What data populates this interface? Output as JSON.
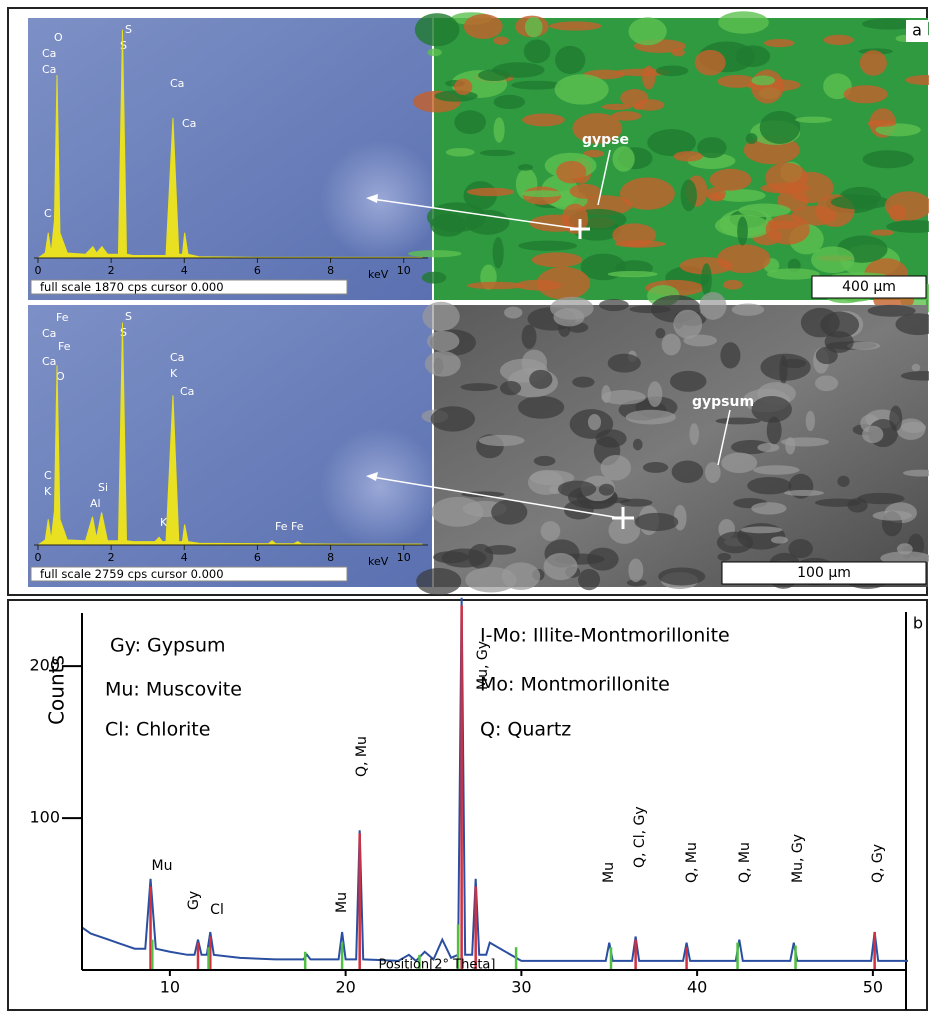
{
  "chart_data": [
    {
      "type": "line",
      "color": "#e8e020",
      "caption": "full scale 1870 cps cursor 0.000",
      "xlabel": "keV",
      "xlim": [
        0,
        10.5
      ],
      "xticks": [
        0,
        2,
        4,
        6,
        8,
        10
      ],
      "ylim": [
        0,
        1870
      ],
      "x": [
        0,
        0.2,
        0.28,
        0.36,
        0.45,
        0.52,
        0.6,
        0.8,
        1.3,
        1.5,
        1.6,
        1.75,
        1.9,
        2.2,
        2.31,
        2.42,
        2.6,
        3.5,
        3.69,
        3.85,
        3.95,
        4.01,
        4.1,
        4.4,
        6,
        8,
        10.5
      ],
      "values": [
        0,
        40,
        200,
        40,
        300,
        1450,
        200,
        40,
        30,
        90,
        40,
        90,
        30,
        30,
        1810,
        30,
        20,
        20,
        1110,
        30,
        30,
        200,
        30,
        10,
        5,
        5,
        5
      ],
      "annotations": [
        "O",
        "Ca",
        "Ca",
        "C",
        "S",
        "S",
        "Ca",
        "Ca"
      ]
    },
    {
      "type": "line",
      "color": "#e8e020",
      "caption": "full scale 2759 cps cursor 0.000",
      "xlabel": "keV",
      "xlim": [
        0,
        10.5
      ],
      "xticks": [
        0,
        2,
        4,
        6,
        8,
        10
      ],
      "ylim": [
        0,
        2759
      ],
      "x": [
        0,
        0.2,
        0.28,
        0.36,
        0.45,
        0.52,
        0.6,
        0.8,
        1.3,
        1.49,
        1.6,
        1.74,
        1.9,
        2.2,
        2.31,
        2.42,
        2.6,
        3.2,
        3.31,
        3.4,
        3.5,
        3.69,
        3.85,
        3.95,
        4.01,
        4.1,
        4.4,
        6.3,
        6.4,
        6.5,
        7.0,
        7.1,
        7.2,
        8,
        10.5
      ],
      "values": [
        0,
        60,
        300,
        60,
        400,
        2100,
        300,
        60,
        50,
        330,
        80,
        380,
        50,
        50,
        2600,
        50,
        40,
        40,
        90,
        40,
        40,
        1750,
        40,
        40,
        240,
        40,
        20,
        15,
        50,
        15,
        15,
        40,
        15,
        10,
        10
      ],
      "annotations": [
        "Fe",
        "Ca",
        "Fe",
        "Ca",
        "O",
        "S",
        "S",
        "Ca",
        "K",
        "Ca",
        "C",
        "K",
        "Si",
        "Al",
        "K",
        "Fe Fe"
      ]
    },
    {
      "type": "line",
      "ylabel": "Counts",
      "xlabel": "Position[2° Theta]",
      "xlim": [
        5,
        52
      ],
      "xticks": [
        10,
        20,
        30,
        40,
        50
      ],
      "ylim": [
        0,
        235
      ],
      "yticks": [
        100,
        200
      ],
      "legend": [
        "Gy: Gypsum",
        "Mu: Muscovite",
        "Cl: Chlorite",
        "I-Mo: Illite-Montmorillonite",
        "Mo: Montmorillonite",
        "Q: Quartz"
      ],
      "annotations": [
        "Mu",
        "Gy",
        "Cl",
        "Mu",
        "Q, Mu",
        "Mu, Gy",
        "Mu",
        "Q, Cl, Gy",
        "Q, Mu",
        "Q, Mu",
        "Mu, Gy",
        "Q, Gy"
      ],
      "series": [
        {
          "color": "#2a4fa0",
          "x": [
            5,
            5.5,
            6,
            6.5,
            7,
            7.5,
            8,
            8.6,
            8.9,
            9.2,
            10,
            11,
            11.4,
            11.6,
            11.8,
            12.1,
            12.3,
            12.5,
            14,
            16,
            17.6,
            17.8,
            18,
            19.6,
            19.8,
            20,
            20.6,
            20.8,
            21,
            23,
            23.6,
            24,
            24.5,
            25,
            25.5,
            26,
            26.4,
            26.6,
            26.8,
            27.2,
            27.4,
            27.6,
            28,
            28.2,
            30,
            34.8,
            35,
            35.2,
            36.3,
            36.5,
            36.7,
            39.2,
            39.4,
            39.6,
            42.2,
            42.4,
            42.6,
            45.3,
            45.5,
            45.7,
            49.9,
            50.1,
            50.3,
            52
          ],
          "values": [
            28,
            24,
            22,
            20,
            18,
            16,
            14,
            14,
            60,
            14,
            12,
            10,
            10,
            20,
            10,
            10,
            25,
            10,
            8,
            7,
            7,
            10,
            7,
            7,
            25,
            7,
            7,
            92,
            7,
            6,
            10,
            6,
            12,
            7,
            20,
            8,
            10,
            245,
            10,
            10,
            60,
            10,
            10,
            18,
            6,
            6,
            18,
            6,
            6,
            22,
            6,
            6,
            18,
            6,
            6,
            20,
            6,
            6,
            18,
            6,
            6,
            25,
            6,
            6
          ]
        },
        {
          "color": "#d03040",
          "sticks": true,
          "x": [
            8.9,
            11.6,
            12.3,
            20.8,
            26.6,
            27.4,
            36.5,
            39.4,
            50.1
          ],
          "values": [
            55,
            18,
            22,
            90,
            240,
            55,
            20,
            15,
            25
          ]
        },
        {
          "color": "#50c040",
          "sticks": true,
          "x": [
            9,
            12.2,
            17.7,
            19.8,
            24.2,
            26.4,
            29.7,
            35.1,
            42.3,
            45.6
          ],
          "values": [
            20,
            15,
            12,
            18,
            10,
            30,
            15,
            15,
            18,
            16
          ]
        }
      ]
    }
  ],
  "images": [
    {
      "panel": "a",
      "label": "gypse",
      "scale": "400 µm"
    },
    {
      "label": "gypsum",
      "scale": "100 µm"
    }
  ],
  "panel_b": "b"
}
